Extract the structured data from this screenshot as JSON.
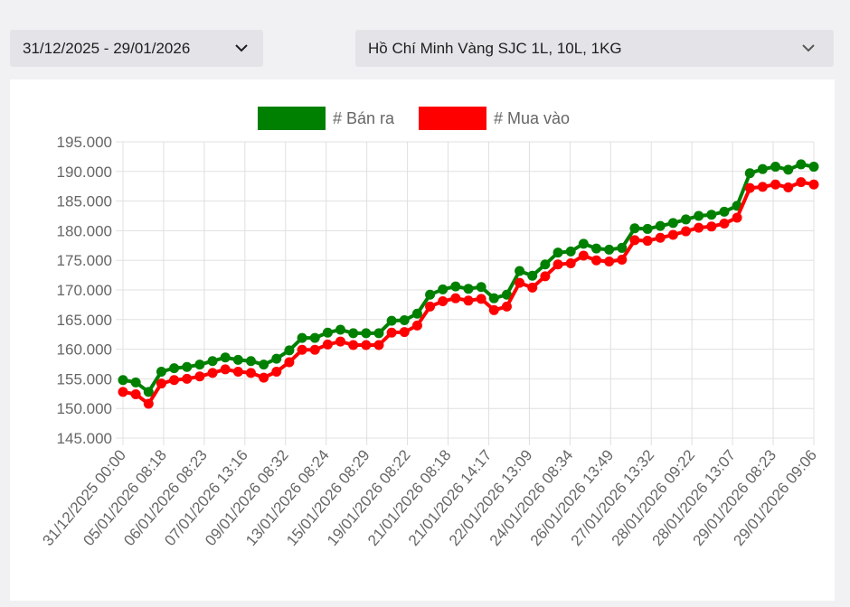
{
  "date_range": {
    "value": "31/12/2025 - 29/01/2026"
  },
  "product": {
    "value": "Hồ Chí Minh Vàng SJC 1L, 10L, 1KG"
  },
  "icons": {
    "dropdown": "chevron-down-icon"
  },
  "colors": {
    "sell": "#008000",
    "buy": "#ff0000",
    "grid": "#e0e0e0",
    "text": "#666666"
  },
  "chart_data": {
    "type": "line",
    "legend": "top-center",
    "grid": true,
    "ylim": [
      145000,
      195000
    ],
    "yticks": [
      "145.000",
      "150.000",
      "155.000",
      "160.000",
      "165.000",
      "170.000",
      "175.000",
      "180.000",
      "185.000",
      "190.000",
      "195.000"
    ],
    "xticks": [
      "31/12/2025 00:00",
      "05/01/2026 08:18",
      "06/01/2026 08:23",
      "07/01/2026 13:16",
      "09/01/2026 08:32",
      "13/01/2026 08:24",
      "15/01/2026 08:29",
      "19/01/2026 08:22",
      "21/01/2026 08:18",
      "21/01/2026 14:17",
      "22/01/2026 13:09",
      "24/01/2026 08:34",
      "26/01/2026 13:49",
      "27/01/2026 13:32",
      "28/01/2026 09:22",
      "28/01/2026 13:07",
      "29/01/2026 08:23",
      "29/01/2026 09:06"
    ],
    "series": [
      {
        "name": "# Bán ra",
        "color": "#008000",
        "values": [
          154800,
          154400,
          152800,
          156200,
          156800,
          157000,
          157400,
          158000,
          158600,
          158200,
          158000,
          157400,
          158400,
          159800,
          161900,
          161900,
          162800,
          163300,
          162700,
          162700,
          162700,
          164800,
          164900,
          166000,
          169200,
          170100,
          170600,
          170200,
          170500,
          168600,
          169200,
          173200,
          172400,
          174300,
          176300,
          176500,
          177800,
          177000,
          176800,
          177100,
          180400,
          180300,
          180800,
          181300,
          181900,
          182500,
          182700,
          183200,
          184200,
          189700,
          190400,
          190800,
          190300,
          191200,
          190800
        ]
      },
      {
        "name": "# Mua vào",
        "color": "#ff0000",
        "values": [
          152800,
          152400,
          150800,
          154200,
          154800,
          155000,
          155400,
          156000,
          156600,
          156200,
          156000,
          155200,
          156200,
          157800,
          159900,
          159900,
          160800,
          161300,
          160700,
          160700,
          160700,
          162800,
          162900,
          164000,
          167200,
          168100,
          168600,
          168200,
          168500,
          166600,
          167200,
          171200,
          170400,
          172300,
          174300,
          174500,
          175800,
          175000,
          174800,
          175100,
          178400,
          178300,
          178800,
          179300,
          179900,
          180500,
          180700,
          181200,
          182200,
          187200,
          187400,
          187800,
          187300,
          188200,
          187800
        ]
      }
    ]
  }
}
